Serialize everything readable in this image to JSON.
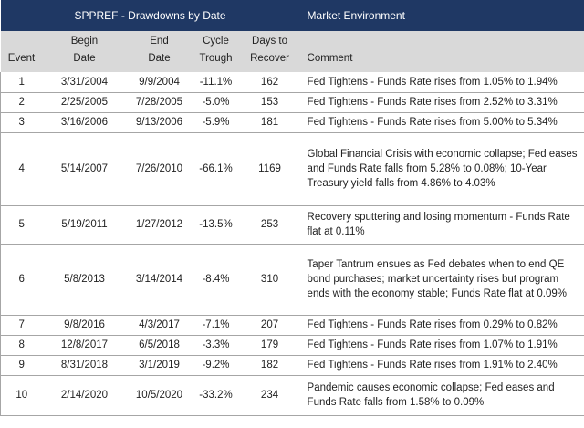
{
  "header": {
    "left_title": "SPPREF - Drawdowns by Date",
    "right_title": "Market Environment"
  },
  "columns": {
    "event": "Event",
    "begin_1": "Begin",
    "begin_2": "Date",
    "end_1": "End",
    "end_2": "Date",
    "trough_1": "Cycle",
    "trough_2": "Trough",
    "days_1": "Days to",
    "days_2": "Recover",
    "comment": "Comment"
  },
  "rows": [
    {
      "event": "1",
      "begin": "3/31/2004",
      "end": "9/9/2004",
      "trough": "-11.1%",
      "days": "162",
      "comment": "Fed Tightens - Funds Rate rises from 1.05% to 1.94%"
    },
    {
      "event": "2",
      "begin": "2/25/2005",
      "end": "7/28/2005",
      "trough": "-5.0%",
      "days": "153",
      "comment": "Fed Tightens - Funds Rate rises from 2.52% to 3.31%"
    },
    {
      "event": "3",
      "begin": "3/16/2006",
      "end": "9/13/2006",
      "trough": "-5.9%",
      "days": "181",
      "comment": "Fed Tightens - Funds Rate rises from 5.00% to 5.34%"
    },
    {
      "event": "4",
      "begin": "5/14/2007",
      "end": "7/26/2010",
      "trough": "-66.1%",
      "days": "1169",
      "comment": "Global Financial Crisis with economic collapse; Fed eases and Funds Rate falls from 5.28% to 0.08%; 10-Year Treasury yield falls from 4.86% to 4.03%"
    },
    {
      "event": "5",
      "begin": "5/19/2011",
      "end": "1/27/2012",
      "trough": "-13.5%",
      "days": "253",
      "comment": "Recovery sputtering and losing momentum - Funds Rate flat at 0.11%"
    },
    {
      "event": "6",
      "begin": "5/8/2013",
      "end": "3/14/2014",
      "trough": "-8.4%",
      "days": "310",
      "comment": "Taper Tantrum ensues as Fed debates when to end QE bond purchases; market uncertainty rises but program ends with the economy stable; Funds Rate flat at 0.09%"
    },
    {
      "event": "7",
      "begin": "9/8/2016",
      "end": "4/3/2017",
      "trough": "-7.1%",
      "days": "207",
      "comment": "Fed Tightens - Funds Rate rises from 0.29% to 0.82%"
    },
    {
      "event": "8",
      "begin": "12/8/2017",
      "end": "6/5/2018",
      "trough": "-3.3%",
      "days": "179",
      "comment": "Fed Tightens - Funds Rate rises from 1.07% to 1.91%"
    },
    {
      "event": "9",
      "begin": "8/31/2018",
      "end": "3/1/2019",
      "trough": "-9.2%",
      "days": "182",
      "comment": "Fed Tightens - Funds Rate rises from 1.91% to 2.40%"
    },
    {
      "event": "10",
      "begin": "2/14/2020",
      "end": "10/5/2020",
      "trough": "-33.2%",
      "days": "234",
      "comment": "Pandemic causes economic collapse; Fed eases and Funds Rate falls from 1.58% to 0.09%"
    }
  ]
}
